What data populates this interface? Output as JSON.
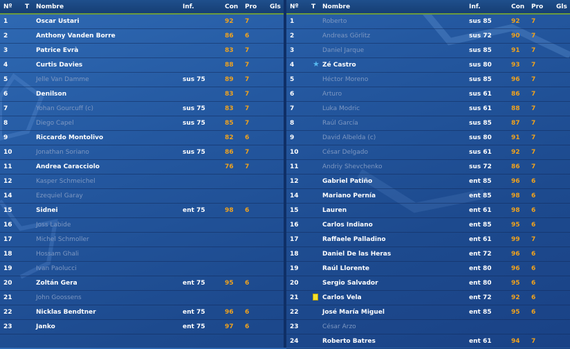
{
  "headers": {
    "num": "Nº",
    "t": "T",
    "name": "Nombre",
    "inf": "Inf.",
    "con": "Con",
    "pro": "Pro",
    "gls": "Gls"
  },
  "colors": {
    "header_bg": "#1a467f",
    "header_line": "#6a9a3e",
    "stat": "#f2a31c",
    "inactive_name": "#7e98c2",
    "star": "#57b8ef",
    "yellow_card": "#f4e12c"
  },
  "left_team": [
    {
      "num": "1",
      "name": "Oscar Ustari",
      "inf": "",
      "con": "92",
      "pro": "7",
      "active": true,
      "icon": ""
    },
    {
      "num": "2",
      "name": "Anthony Vanden Borre",
      "inf": "",
      "con": "86",
      "pro": "6",
      "active": true,
      "icon": ""
    },
    {
      "num": "3",
      "name": "Patrice Evrà",
      "inf": "",
      "con": "83",
      "pro": "7",
      "active": true,
      "icon": ""
    },
    {
      "num": "4",
      "name": "Curtis Davies",
      "inf": "",
      "con": "88",
      "pro": "7",
      "active": true,
      "icon": ""
    },
    {
      "num": "5",
      "name": "Jelle Van Damme",
      "inf": "sus 75",
      "con": "89",
      "pro": "7",
      "active": false,
      "icon": ""
    },
    {
      "num": "6",
      "name": "Denilson",
      "inf": "",
      "con": "83",
      "pro": "7",
      "active": true,
      "icon": ""
    },
    {
      "num": "7",
      "name": "Yohan Gourcuff (c)",
      "inf": "sus 75",
      "con": "83",
      "pro": "7",
      "active": false,
      "icon": ""
    },
    {
      "num": "8",
      "name": "Diego Capel",
      "inf": "sus 75",
      "con": "85",
      "pro": "7",
      "active": false,
      "icon": ""
    },
    {
      "num": "9",
      "name": "Riccardo Montolivo",
      "inf": "",
      "con": "82",
      "pro": "6",
      "active": true,
      "icon": ""
    },
    {
      "num": "10",
      "name": "Jonathan Soriano",
      "inf": "sus 75",
      "con": "86",
      "pro": "7",
      "active": false,
      "icon": ""
    },
    {
      "num": "11",
      "name": "Andrea Caracciolo",
      "inf": "",
      "con": "76",
      "pro": "7",
      "active": true,
      "icon": ""
    },
    {
      "num": "12",
      "name": "Kasper Schmeichel",
      "inf": "",
      "con": "",
      "pro": "",
      "active": false,
      "icon": ""
    },
    {
      "num": "14",
      "name": "Ezequiel Garay",
      "inf": "",
      "con": "",
      "pro": "",
      "active": false,
      "icon": ""
    },
    {
      "num": "15",
      "name": "Sidnei",
      "inf": "ent 75",
      "con": "98",
      "pro": "6",
      "active": true,
      "icon": ""
    },
    {
      "num": "16",
      "name": "Joss Labide",
      "inf": "",
      "con": "",
      "pro": "",
      "active": false,
      "icon": ""
    },
    {
      "num": "17",
      "name": "Michel Schmoller",
      "inf": "",
      "con": "",
      "pro": "",
      "active": false,
      "icon": ""
    },
    {
      "num": "18",
      "name": "Hossam Ghali",
      "inf": "",
      "con": "",
      "pro": "",
      "active": false,
      "icon": ""
    },
    {
      "num": "19",
      "name": "Ivan Paolucci",
      "inf": "",
      "con": "",
      "pro": "",
      "active": false,
      "icon": ""
    },
    {
      "num": "20",
      "name": "Zoltán Gera",
      "inf": "ent 75",
      "con": "95",
      "pro": "6",
      "active": true,
      "icon": ""
    },
    {
      "num": "21",
      "name": "John Goossens",
      "inf": "",
      "con": "",
      "pro": "",
      "active": false,
      "icon": ""
    },
    {
      "num": "22",
      "name": "Nicklas Bendtner",
      "inf": "ent 75",
      "con": "96",
      "pro": "6",
      "active": true,
      "icon": ""
    },
    {
      "num": "23",
      "name": "Janko",
      "inf": "ent 75",
      "con": "97",
      "pro": "6",
      "active": true,
      "icon": ""
    }
  ],
  "right_team": [
    {
      "num": "1",
      "name": "Roberto",
      "inf": "sus 85",
      "con": "92",
      "pro": "7",
      "active": false,
      "icon": ""
    },
    {
      "num": "2",
      "name": "Andreas Görlitz",
      "inf": "sus 72",
      "con": "90",
      "pro": "7",
      "active": false,
      "icon": ""
    },
    {
      "num": "3",
      "name": "Daniel Jarque",
      "inf": "sus 85",
      "con": "91",
      "pro": "7",
      "active": false,
      "icon": ""
    },
    {
      "num": "4",
      "name": "Zé Castro",
      "inf": "sus 80",
      "con": "93",
      "pro": "7",
      "active": true,
      "icon": "star"
    },
    {
      "num": "5",
      "name": "Héctor Moreno",
      "inf": "sus 85",
      "con": "96",
      "pro": "7",
      "active": false,
      "icon": ""
    },
    {
      "num": "6",
      "name": "Arturo",
      "inf": "sus 61",
      "con": "86",
      "pro": "7",
      "active": false,
      "icon": ""
    },
    {
      "num": "7",
      "name": "Luka Modric",
      "inf": "sus 61",
      "con": "88",
      "pro": "7",
      "active": false,
      "icon": ""
    },
    {
      "num": "8",
      "name": "Raúl García",
      "inf": "sus 85",
      "con": "87",
      "pro": "7",
      "active": false,
      "icon": ""
    },
    {
      "num": "9",
      "name": "David Albelda (c)",
      "inf": "sus 80",
      "con": "91",
      "pro": "7",
      "active": false,
      "icon": ""
    },
    {
      "num": "10",
      "name": "César Delgado",
      "inf": "sus 61",
      "con": "92",
      "pro": "7",
      "active": false,
      "icon": ""
    },
    {
      "num": "11",
      "name": "Andriy Shevchenko",
      "inf": "sus 72",
      "con": "86",
      "pro": "7",
      "active": false,
      "icon": ""
    },
    {
      "num": "12",
      "name": "Gabriel Patiño",
      "inf": "ent 85",
      "con": "96",
      "pro": "6",
      "active": true,
      "icon": ""
    },
    {
      "num": "14",
      "name": "Mariano Pernía",
      "inf": "ent 85",
      "con": "98",
      "pro": "6",
      "active": true,
      "icon": ""
    },
    {
      "num": "15",
      "name": "Lauren",
      "inf": "ent 61",
      "con": "98",
      "pro": "6",
      "active": true,
      "icon": ""
    },
    {
      "num": "16",
      "name": "Carlos Indiano",
      "inf": "ent 85",
      "con": "95",
      "pro": "6",
      "active": true,
      "icon": ""
    },
    {
      "num": "17",
      "name": "Raffaele Palladino",
      "inf": "ent 61",
      "con": "99",
      "pro": "7",
      "active": true,
      "icon": ""
    },
    {
      "num": "18",
      "name": "Daniel De las Heras",
      "inf": "ent 72",
      "con": "96",
      "pro": "6",
      "active": true,
      "icon": ""
    },
    {
      "num": "19",
      "name": "Raúl Llorente",
      "inf": "ent 80",
      "con": "96",
      "pro": "6",
      "active": true,
      "icon": ""
    },
    {
      "num": "20",
      "name": "Sergio Salvador",
      "inf": "ent 80",
      "con": "95",
      "pro": "6",
      "active": true,
      "icon": ""
    },
    {
      "num": "21",
      "name": "Carlos Vela",
      "inf": "ent 72",
      "con": "92",
      "pro": "6",
      "active": true,
      "icon": "yellow-card"
    },
    {
      "num": "22",
      "name": "José María Miguel",
      "inf": "ent 85",
      "con": "95",
      "pro": "6",
      "active": true,
      "icon": ""
    },
    {
      "num": "23",
      "name": "César Arzo",
      "inf": "",
      "con": "",
      "pro": "",
      "active": false,
      "icon": ""
    },
    {
      "num": "24",
      "name": "Roberto Batres",
      "inf": "ent 61",
      "con": "94",
      "pro": "7",
      "active": true,
      "icon": ""
    }
  ]
}
